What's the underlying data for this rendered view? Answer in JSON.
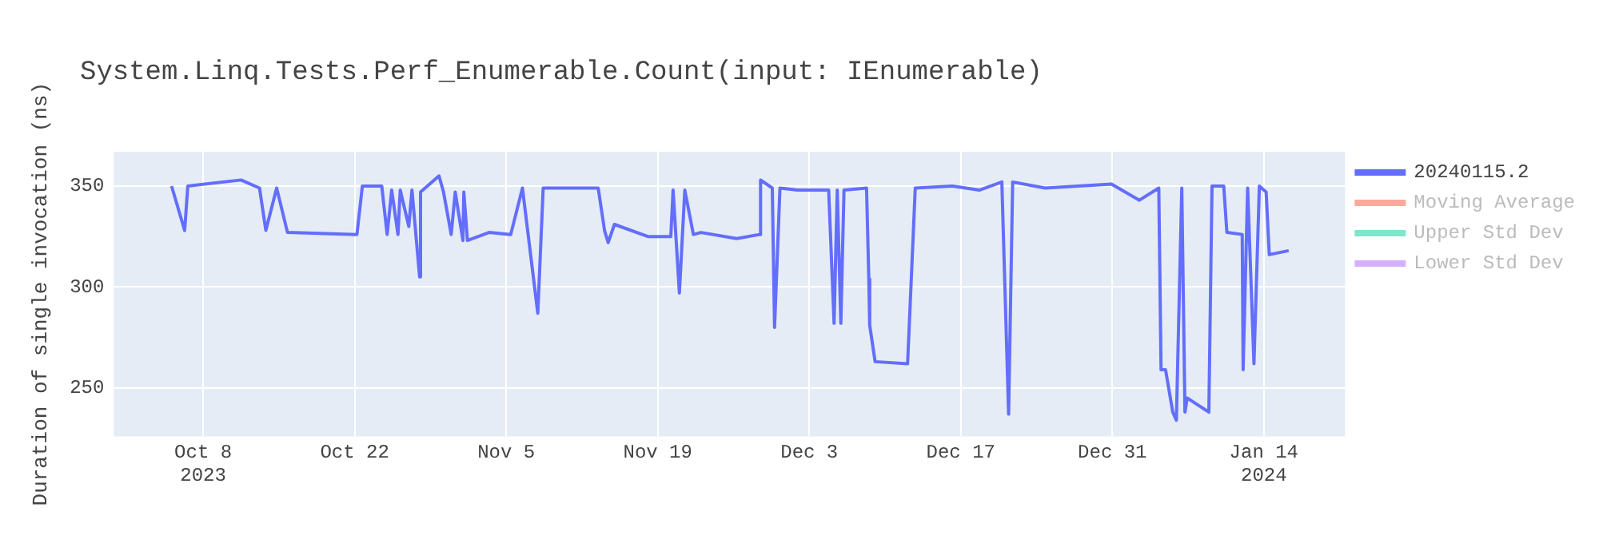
{
  "chart_data": {
    "type": "line",
    "title": "System.Linq.Tests.Perf_Enumerable.Count(input: IEnumerable)",
    "ylabel": "Duration of single invocation (ns)",
    "x": [
      "2023-10-05T02:00",
      "2023-10-06T07:00",
      "2023-10-06T14:00",
      "2023-10-11T12:00",
      "2023-10-13T05:00",
      "2023-10-13T19:00",
      "2023-10-14T19:00",
      "2023-10-15T19:00",
      "2023-10-22T05:00",
      "2023-10-22T17:00",
      "2023-10-24T12:00",
      "2023-10-25T00:00",
      "2023-10-25T10:00",
      "2023-10-26T00:00",
      "2023-10-26T05:00",
      "2023-10-27T00:00",
      "2023-10-27T07:00",
      "2023-10-28T00:00",
      "2023-10-28T02:00",
      "2023-10-29T19:00",
      "2023-10-30T05:00",
      "2023-10-30T22:00",
      "2023-10-31T07:00",
      "2023-11-01T00:00",
      "2023-11-01T02:00",
      "2023-11-01T10:00",
      "2023-11-03T10:00",
      "2023-11-05T10:00",
      "2023-11-06T12:00",
      "2023-11-07T22:00",
      "2023-11-08T10:00",
      "2023-11-13T12:00",
      "2023-11-14T02:00",
      "2023-11-14T10:00",
      "2023-11-15T00:00",
      "2023-11-18T02:00",
      "2023-11-20T05:00",
      "2023-11-20T10:00",
      "2023-11-21T00:00",
      "2023-11-21T12:00",
      "2023-11-22T07:00",
      "2023-11-23T00:00",
      "2023-11-26T07:00",
      "2023-11-28T10:00",
      "2023-11-28T12:00",
      "2023-11-29T14:00",
      "2023-11-29T19:00",
      "2023-11-30T07:00",
      "2023-12-01T22:00",
      "2023-12-04T19:00",
      "2023-12-05T07:00",
      "2023-12-05T14:00",
      "2023-12-05T22:00",
      "2023-12-06T05:00",
      "2023-12-08T07:00",
      "2023-12-08T12:00",
      "2023-12-08T14:00",
      "2023-12-09T02:00",
      "2023-12-12T02:00",
      "2023-12-12T19:00",
      "2023-12-16T05:00",
      "2023-12-18T17:00",
      "2023-12-20T19:00",
      "2023-12-21T10:00",
      "2023-12-21T19:00",
      "2023-12-24T19:00",
      "2023-12-30T22:00",
      "2024-01-02T12:00",
      "2024-01-04T07:00",
      "2024-01-04T12:00",
      "2024-01-04T22:00",
      "2024-01-05T14:00",
      "2024-01-05T22:00",
      "2024-01-06T10:00",
      "2024-01-06T17:00",
      "2024-01-06T22:00",
      "2024-01-08T22:00",
      "2024-01-09T05:00",
      "2024-01-10T07:00",
      "2024-01-10T14:00",
      "2024-01-12T00:00",
      "2024-01-12T02:00",
      "2024-01-12T12:00",
      "2024-01-13T02:00",
      "2024-01-13T14:00",
      "2024-01-14T05:00",
      "2024-01-14T12:00",
      "2024-01-16T07:00"
    ],
    "series": [
      {
        "name": "20240115.2",
        "color": "#636efa",
        "values": [
          350,
          328,
          350,
          353,
          349,
          328,
          349,
          327,
          326,
          350,
          350,
          326,
          348,
          326,
          348,
          330,
          348,
          305,
          347,
          355,
          347,
          326,
          347,
          323,
          347,
          323,
          327,
          326,
          349,
          287,
          349,
          349,
          328,
          322,
          331,
          325,
          325,
          348,
          297,
          348,
          326,
          327,
          324,
          326,
          353,
          349,
          280,
          349,
          348,
          348,
          282,
          348,
          282,
          348,
          349,
          304,
          281,
          263,
          262,
          349,
          350,
          348,
          352,
          237,
          352,
          349,
          351,
          343,
          349,
          259,
          259,
          238,
          234,
          349,
          238,
          245,
          238,
          350,
          350,
          327,
          326,
          259,
          349,
          262,
          350,
          347,
          316,
          318
        ]
      },
      {
        "name": "Moving Average",
        "color": "#f7aa9d",
        "values": [
          null,
          null,
          null,
          null,
          null,
          null,
          null,
          null,
          null,
          null,
          null,
          null,
          null,
          null,
          null,
          null,
          null,
          null,
          null,
          null,
          null,
          null,
          null,
          null,
          null,
          null,
          null,
          null,
          null,
          null,
          null,
          null,
          null,
          null,
          null,
          null,
          null,
          null,
          null,
          null,
          null,
          null,
          null,
          null,
          null,
          null,
          null,
          null,
          null,
          null,
          null,
          null,
          null,
          null,
          null,
          null,
          null,
          null,
          null,
          null,
          null,
          null,
          null,
          null,
          null,
          null,
          null,
          null,
          null,
          null,
          null,
          null,
          null,
          null,
          null,
          null,
          null,
          null,
          null,
          null,
          null,
          null,
          null,
          null,
          null,
          null,
          null,
          null
        ]
      },
      {
        "name": "Upper Std Dev",
        "color": "#80e5ca",
        "values": [
          null,
          null,
          null,
          null,
          null,
          null,
          null,
          null,
          null,
          null,
          null,
          null,
          null,
          null,
          null,
          null,
          null,
          null,
          null,
          null,
          null,
          null,
          null,
          null,
          null,
          null,
          null,
          null,
          null,
          null,
          null,
          null,
          null,
          null,
          null,
          null,
          null,
          null,
          null,
          null,
          null,
          null,
          null,
          null,
          null,
          null,
          null,
          null,
          null,
          null,
          null,
          null,
          null,
          null,
          null,
          null,
          null,
          null,
          null,
          null,
          null,
          null,
          null,
          null,
          null,
          null,
          null,
          null,
          null,
          null,
          null,
          null,
          null,
          null,
          null,
          null,
          null,
          null,
          null,
          null,
          null,
          null,
          null,
          null,
          null,
          null,
          null,
          null
        ]
      },
      {
        "name": "Lower Std Dev",
        "color": "#d5b1fd",
        "values": [
          null,
          null,
          null,
          null,
          null,
          null,
          null,
          null,
          null,
          null,
          null,
          null,
          null,
          null,
          null,
          null,
          null,
          null,
          null,
          null,
          null,
          null,
          null,
          null,
          null,
          null,
          null,
          null,
          null,
          null,
          null,
          null,
          null,
          null,
          null,
          null,
          null,
          null,
          null,
          null,
          null,
          null,
          null,
          null,
          null,
          null,
          null,
          null,
          null,
          null,
          null,
          null,
          null,
          null,
          null,
          null,
          null,
          null,
          null,
          null,
          null,
          null,
          null,
          null,
          null,
          null,
          null,
          null,
          null,
          null,
          null,
          null,
          null,
          null,
          null,
          null,
          null,
          null,
          null,
          null,
          null,
          null,
          null,
          null,
          null,
          null,
          null,
          null
        ]
      }
    ],
    "xlim": [
      "2023-09-29T18:00",
      "2024-01-21T12:00"
    ],
    "xticks": [
      {
        "value": "2023-10-08T00:00",
        "label": "Oct 8\n2023"
      },
      {
        "value": "2023-10-22T00:00",
        "label": "Oct 22"
      },
      {
        "value": "2023-11-05T00:00",
        "label": "Nov 5"
      },
      {
        "value": "2023-11-19T00:00",
        "label": "Nov 19"
      },
      {
        "value": "2023-12-03T00:00",
        "label": "Dec 3"
      },
      {
        "value": "2023-12-17T00:00",
        "label": "Dec 17"
      },
      {
        "value": "2023-12-31T00:00",
        "label": "Dec 31"
      },
      {
        "value": "2024-01-14T00:00",
        "label": "Jan 14\n2024"
      }
    ],
    "ylim": [
      226,
      367
    ],
    "yticks": [
      250,
      300,
      350
    ],
    "grid": true,
    "legend": "top right",
    "marker": "none",
    "line_style": "solid"
  }
}
